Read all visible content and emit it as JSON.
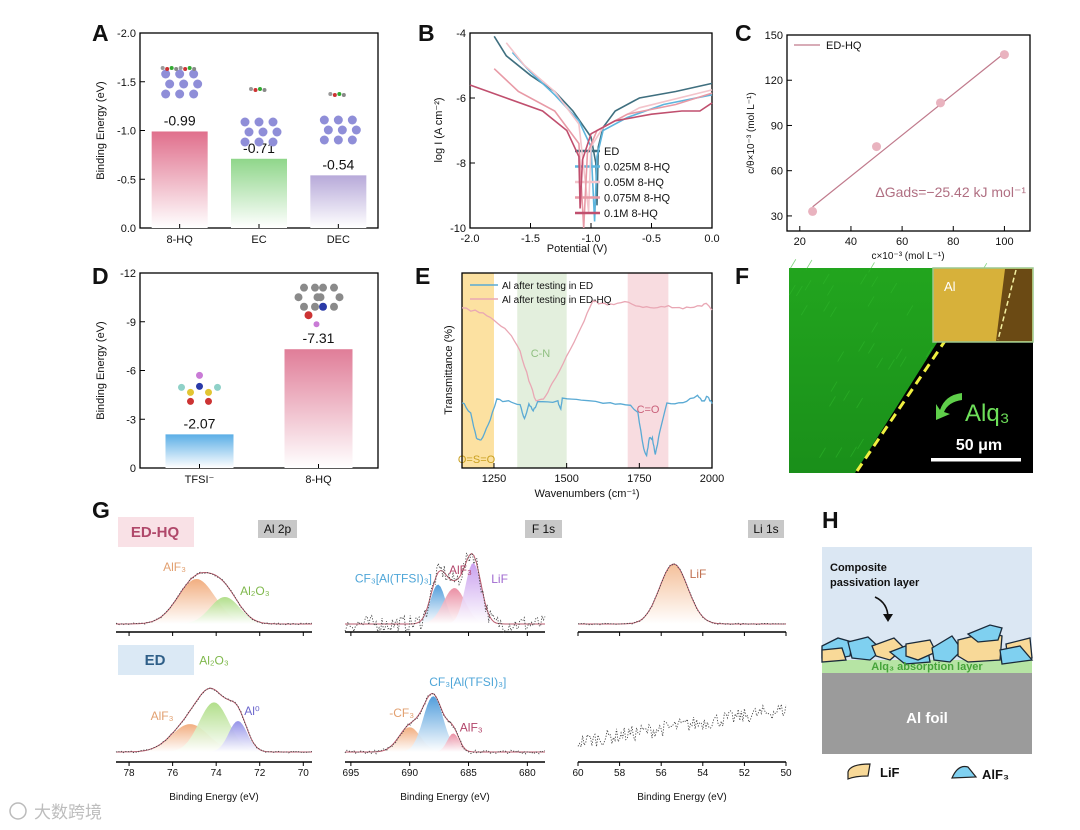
{
  "panel_letters": [
    "A",
    "B",
    "C",
    "D",
    "E",
    "F",
    "G",
    "H"
  ],
  "watermark": "大数跨境",
  "chart_data": [
    {
      "panel": "A",
      "type": "bar",
      "categories": [
        "8-HQ",
        "EC",
        "DEC"
      ],
      "values": [
        -0.99,
        -0.71,
        -0.54
      ],
      "value_labels": [
        "-0.99",
        "-0.71",
        "-0.54"
      ],
      "colors": [
        "#e06f8c",
        "#8fd68a",
        "#b7a9d9"
      ],
      "ylabel": "Binding Energy (eV)",
      "ylim": [
        0,
        -2.0
      ],
      "yticks": [
        "0.0",
        "-0.5",
        "-1.0",
        "-1.5",
        "-2.0"
      ]
    },
    {
      "panel": "B",
      "type": "line",
      "xlabel": "Potential (V)",
      "ylabel": "log I (A cm⁻²)",
      "xlim": [
        -2.0,
        0.0
      ],
      "ylim": [
        -10,
        -4
      ],
      "xticks": [
        "-2.0",
        "-1.5",
        "-1.0",
        "-0.5",
        "0.0"
      ],
      "yticks": [
        "-10",
        "-8",
        "-6",
        "-4"
      ],
      "legend": "bottom-right",
      "series": [
        {
          "name": "ED",
          "color": "#3f6f7f",
          "points": [
            [
              -1.8,
              -4.1
            ],
            [
              -1.7,
              -4.7
            ],
            [
              -1.5,
              -5.3
            ],
            [
              -1.3,
              -5.8
            ],
            [
              -1.15,
              -6.4
            ],
            [
              -1.0,
              -7.2
            ],
            [
              -0.96,
              -8.0
            ],
            [
              -0.95,
              -9.3
            ],
            [
              -0.94,
              -7.5
            ],
            [
              -0.9,
              -6.9
            ],
            [
              -0.8,
              -6.4
            ],
            [
              -0.6,
              -6.0
            ],
            [
              -0.3,
              -5.8
            ],
            [
              0,
              -5.55
            ]
          ]
        },
        {
          "name": "0.025M 8-HQ",
          "color": "#5db5dd",
          "points": [
            [
              -1.65,
              -4.6
            ],
            [
              -1.5,
              -5.2
            ],
            [
              -1.3,
              -5.9
            ],
            [
              -1.1,
              -6.7
            ],
            [
              -1.0,
              -7.5
            ],
            [
              -0.97,
              -9.8
            ],
            [
              -0.95,
              -7.8
            ],
            [
              -0.9,
              -7.0
            ],
            [
              -0.7,
              -6.6
            ],
            [
              -0.4,
              -6.2
            ],
            [
              0,
              -5.9
            ]
          ]
        },
        {
          "name": "0.05M 8-HQ",
          "color": "#f3c4cb",
          "points": [
            [
              -1.7,
              -4.3
            ],
            [
              -1.55,
              -5.0
            ],
            [
              -1.3,
              -5.8
            ],
            [
              -1.1,
              -6.8
            ],
            [
              -1.02,
              -9.5
            ],
            [
              -1.0,
              -7.5
            ],
            [
              -0.9,
              -6.9
            ],
            [
              -0.6,
              -6.3
            ],
            [
              0,
              -5.75
            ]
          ]
        },
        {
          "name": "0.075M 8-HQ",
          "color": "#e89aa6",
          "points": [
            [
              -1.8,
              -5.1
            ],
            [
              -1.6,
              -5.8
            ],
            [
              -1.3,
              -6.4
            ],
            [
              -1.1,
              -7.4
            ],
            [
              -1.06,
              -10
            ],
            [
              -1.03,
              -7.7
            ],
            [
              -0.95,
              -7.0
            ],
            [
              -0.7,
              -6.5
            ],
            [
              -0.3,
              -6.2
            ],
            [
              0,
              -5.85
            ]
          ]
        },
        {
          "name": "0.1M 8-HQ",
          "color": "#c04f6e",
          "points": [
            [
              -2.0,
              -5.6
            ],
            [
              -1.7,
              -6.0
            ],
            [
              -1.4,
              -6.4
            ],
            [
              -1.2,
              -7.0
            ],
            [
              -1.1,
              -7.8
            ],
            [
              -1.09,
              -9.4
            ],
            [
              -1.07,
              -7.9
            ],
            [
              -1.0,
              -7.1
            ],
            [
              -0.8,
              -6.7
            ],
            [
              -0.5,
              -6.5
            ],
            [
              -0.25,
              -6.4
            ],
            [
              -0.1,
              -6.4
            ],
            [
              0,
              -6.15
            ]
          ]
        }
      ]
    },
    {
      "panel": "C",
      "type": "scatter",
      "xlabel": "c×10⁻³ (mol L⁻¹)",
      "ylabel": "c/θ×10⁻³ (mol L⁻¹)",
      "xlim": [
        15,
        110
      ],
      "ylim": [
        20,
        150
      ],
      "xticks": [
        "20",
        "40",
        "60",
        "80",
        "100"
      ],
      "yticks": [
        "30",
        "60",
        "90",
        "120",
        "150"
      ],
      "legend": "top-left",
      "series": [
        {
          "name": "ED-HQ",
          "color": "#e9b3bf",
          "line_color": "#c07a8c",
          "x": [
            25,
            50,
            75,
            100
          ],
          "y": [
            33,
            76,
            105,
            137
          ],
          "fit": [
            [
              25,
              36
            ],
            [
              100,
              138
            ]
          ]
        }
      ],
      "annotation": "ΔGads=−25.42 kJ mol⁻¹"
    },
    {
      "panel": "D",
      "type": "bar",
      "categories": [
        "TFSI⁻",
        "8-HQ"
      ],
      "values": [
        -2.07,
        -7.31
      ],
      "value_labels": [
        "-2.07",
        "-7.31"
      ],
      "colors": [
        "#5aaee6",
        "#e07d98"
      ],
      "ylabel": "Binding Energy (eV)",
      "ylim": [
        0,
        -12
      ],
      "yticks": [
        "0",
        "-3",
        "-6",
        "-9",
        "-12"
      ]
    },
    {
      "panel": "E",
      "type": "line",
      "xlabel": "Wavenumbers (cm⁻¹)",
      "ylabel": "Transmittance (%)",
      "xlim": [
        1140,
        2000
      ],
      "ylim": [
        0,
        1
      ],
      "xticks": [
        "1250",
        "1500",
        "1750",
        "2000"
      ],
      "legend": "top-left",
      "regions": [
        {
          "label": "O=S=O",
          "from": 1140,
          "to": 1250,
          "color": "#fbd98a",
          "text_color": "#c9a020"
        },
        {
          "label": "C-N",
          "from": 1330,
          "to": 1500,
          "color": "#dcebd4",
          "text_color": "#8fbf80"
        },
        {
          "label": "C=O",
          "from": 1710,
          "to": 1850,
          "color": "#f6d3d8",
          "text_color": "#c9607a"
        }
      ],
      "series": [
        {
          "name": "Al after testing in ED",
          "color": "#5aaad4",
          "points": [
            [
              1140,
              0.34
            ],
            [
              1170,
              0.28
            ],
            [
              1190,
              0.15
            ],
            [
              1205,
              0.14
            ],
            [
              1230,
              0.22
            ],
            [
              1260,
              0.35
            ],
            [
              1300,
              0.34
            ],
            [
              1340,
              0.32
            ],
            [
              1355,
              0.25
            ],
            [
              1370,
              0.33
            ],
            [
              1385,
              0.29
            ],
            [
              1400,
              0.34
            ],
            [
              1470,
              0.34
            ],
            [
              1480,
              0.3
            ],
            [
              1485,
              0.36
            ],
            [
              1550,
              0.35
            ],
            [
              1650,
              0.33
            ],
            [
              1720,
              0.32
            ],
            [
              1745,
              0.28
            ],
            [
              1765,
              0.1
            ],
            [
              1775,
              0.06
            ],
            [
              1785,
              0.16
            ],
            [
              1795,
              0.15
            ],
            [
              1805,
              0.07
            ],
            [
              1820,
              0.18
            ],
            [
              1845,
              0.33
            ],
            [
              1900,
              0.34
            ],
            [
              1950,
              0.37
            ],
            [
              1970,
              0.34
            ],
            [
              1985,
              0.37
            ],
            [
              2000,
              0.33
            ]
          ]
        },
        {
          "name": "Al after testing in ED-HQ",
          "color": "#e9a7b4",
          "points": [
            [
              1140,
              0.82
            ],
            [
              1200,
              0.8
            ],
            [
              1250,
              0.76
            ],
            [
              1300,
              0.7
            ],
            [
              1340,
              0.6
            ],
            [
              1370,
              0.45
            ],
            [
              1395,
              0.34
            ],
            [
              1420,
              0.35
            ],
            [
              1450,
              0.43
            ],
            [
              1500,
              0.57
            ],
            [
              1550,
              0.72
            ],
            [
              1590,
              0.86
            ],
            [
              1610,
              0.84
            ],
            [
              1650,
              0.84
            ],
            [
              1700,
              0.85
            ],
            [
              1750,
              0.83
            ],
            [
              1800,
              0.82
            ],
            [
              1850,
              0.83
            ],
            [
              1900,
              0.82
            ],
            [
              1950,
              0.83
            ],
            [
              1980,
              0.84
            ],
            [
              2000,
              0.81
            ]
          ]
        }
      ]
    },
    {
      "panel": "G",
      "subpanel": "Al 2p",
      "type": "line",
      "title": "Al 2p",
      "xlabel": "Binding Energy (eV)",
      "xlim": [
        78.6,
        69.6
      ],
      "xticks": [
        "78",
        "76",
        "74",
        "72",
        "70"
      ],
      "rows": [
        {
          "name": "ED-HQ",
          "noise": 0.015,
          "peaks": [
            {
              "label": "AlF₃",
              "center": 74.9,
              "height": 0.75,
              "width": 2.0,
              "color": "#f0a572",
              "text_color": "#e2a070"
            },
            {
              "label": "Al₂O₃",
              "center": 73.6,
              "height": 0.45,
              "width": 1.6,
              "color": "#a9db7e",
              "text_color": "#7fb84c"
            }
          ]
        },
        {
          "name": "ED",
          "noise": 0.015,
          "peaks": [
            {
              "label": "AlF₃",
              "center": 75.2,
              "height": 0.45,
              "width": 2.0,
              "color": "#f0a572",
              "text_color": "#e2a070"
            },
            {
              "label": "Al₂O₃",
              "center": 74.1,
              "height": 0.8,
              "width": 1.6,
              "color": "#a9db7e",
              "text_color": "#7fb84c"
            },
            {
              "label": "Al⁰",
              "center": 73.0,
              "height": 0.5,
              "width": 1.0,
              "color": "#8a88e6",
              "text_color": "#6b66cc"
            }
          ]
        }
      ]
    },
    {
      "panel": "G",
      "subpanel": "F 1s",
      "type": "line",
      "title": "F 1s",
      "xlabel": "Binding Energy (eV)",
      "xlim": [
        695.5,
        678.5
      ],
      "xticks": [
        "695",
        "690",
        "685",
        "680"
      ],
      "rows": [
        {
          "name": "ED-HQ",
          "noise": 0.12,
          "peaks": [
            {
              "label": "CF₃[Al(TFSI)₃]",
              "center": 687.6,
              "height": 0.55,
              "width": 1.5,
              "color": "#3f93d8",
              "text_color": "#4fa6d8"
            },
            {
              "label": "AlF₃",
              "center": 686.2,
              "height": 0.5,
              "width": 2.2,
              "color": "#e8839a",
              "text_color": "#b2456a"
            },
            {
              "label": "LiF",
              "center": 684.6,
              "height": 0.85,
              "width": 1.6,
              "color": "#c496ec",
              "text_color": "#a06ad0"
            }
          ]
        },
        {
          "name": "ED",
          "noise": 0.03,
          "peaks": [
            {
              "label": "-CF₃",
              "center": 690.0,
              "height": 0.4,
              "width": 2.2,
              "color": "#f0a572",
              "text_color": "#e2a070"
            },
            {
              "label": "CF₃[Al(TFSI)₃]",
              "center": 688.0,
              "height": 0.9,
              "width": 2.0,
              "color": "#3f93d8",
              "text_color": "#4fa6d8"
            },
            {
              "label": "AlF₃",
              "center": 686.3,
              "height": 0.3,
              "width": 1.2,
              "color": "#e8839a",
              "text_color": "#b2456a"
            }
          ]
        }
      ]
    },
    {
      "panel": "G",
      "subpanel": "Li 1s",
      "type": "line",
      "title": "Li 1s",
      "xlabel": "Binding Energy (eV)",
      "xlim": [
        60,
        50
      ],
      "xticks": [
        "60",
        "58",
        "56",
        "54",
        "52",
        "50"
      ],
      "rows": [
        {
          "name": "ED-HQ",
          "noise": 0.012,
          "peaks": [
            {
              "label": "LiF",
              "center": 55.4,
              "height": 1.0,
              "width": 1.6,
              "color": "#f3b98f",
              "text_color": "#c07050"
            }
          ]
        },
        {
          "name": "ED",
          "noise": 0.09,
          "trend": [
            0.12,
            0.5
          ],
          "peaks": []
        }
      ]
    }
  ],
  "panel_F": {
    "inset_label": "Al",
    "label": "Alq₃",
    "scale_bar": "50 μm"
  },
  "panel_G": {
    "row_tags": [
      "ED-HQ",
      "ED"
    ]
  },
  "panel_H": {
    "passivation_label_1": "Composite",
    "passivation_label_2": "passivation layer",
    "absorption_label": "Alq₃ absorption layer",
    "foil_label": "Al foil",
    "legend": [
      {
        "label": "LiF",
        "color": "#f8d998"
      },
      {
        "label": "AlF₃",
        "color": "#7fd0f0"
      }
    ]
  },
  "colors": {
    "axis": "#000000",
    "envelope": "#b85a6c",
    "data_dots": "#444444"
  }
}
